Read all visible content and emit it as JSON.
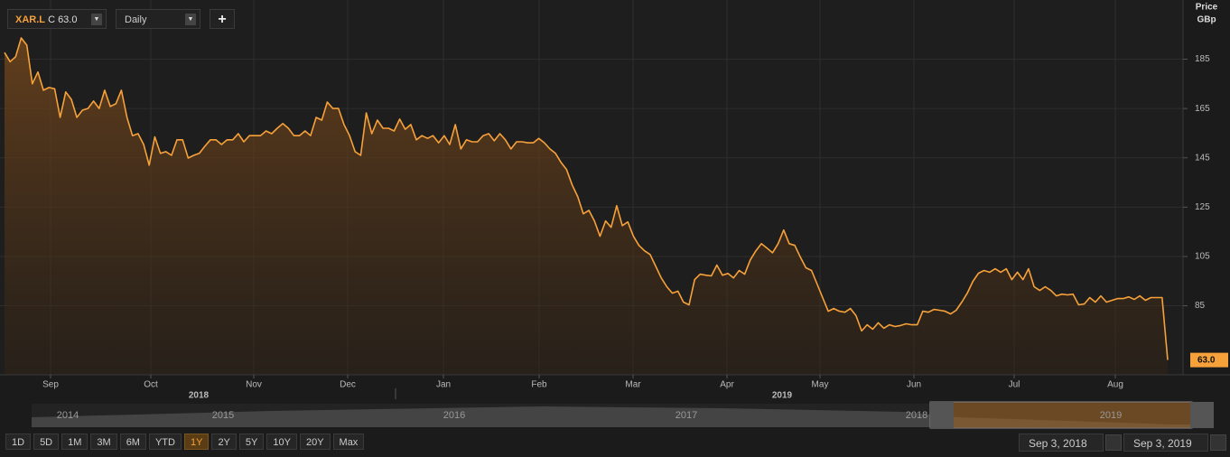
{
  "toolbar": {
    "symbol": "XAR.L",
    "quote": "C 63.0",
    "interval": "Daily",
    "add": "+"
  },
  "axis_header": {
    "title": "Price",
    "unit": "GBp"
  },
  "chart_data": {
    "type": "line",
    "color": "#f7a13a",
    "x_labels": [
      "Sep",
      "Oct",
      "Nov",
      "Dec",
      "Jan",
      "Feb",
      "Mar",
      "Apr",
      "May",
      "Jun",
      "Jul",
      "Aug"
    ],
    "year_labels": [
      "2018",
      "2019"
    ],
    "ylim": [
      57,
      209
    ],
    "yticks": [
      85,
      105,
      125,
      145,
      165,
      185
    ],
    "grid": true,
    "last_price_label": "63.0",
    "values": [
      187.7,
      184,
      186,
      193.6,
      190.7,
      175,
      179.8,
      172.4,
      173.5,
      173,
      161.4,
      171.7,
      168.7,
      161.4,
      164.3,
      165,
      168,
      165,
      172.4,
      165.8,
      166.9,
      172.4,
      161.4,
      154,
      154.8,
      150.4,
      142,
      153.5,
      146.8,
      147.5,
      146,
      152.3,
      152.3,
      144.9,
      146,
      146.8,
      149.7,
      152.3,
      152.3,
      150.4,
      152.3,
      152.3,
      154.8,
      151.5,
      154,
      154,
      154,
      155.9,
      154.8,
      157,
      158.9,
      157,
      154,
      154,
      155.9,
      154,
      161.4,
      160.3,
      167.6,
      165,
      165,
      158.5,
      154,
      147.5,
      146,
      163.2,
      154.8,
      160.3,
      157,
      157,
      155.9,
      160.7,
      156.6,
      158.5,
      152.3,
      154,
      152.9,
      154,
      151.1,
      154,
      150.4,
      158.5,
      148.6,
      152.3,
      151.5,
      151.5,
      154,
      154.8,
      151.9,
      154.8,
      152.3,
      148.6,
      151.5,
      151.5,
      151.1,
      151.1,
      152.9,
      151.1,
      148.6,
      146.8,
      143.1,
      140.2,
      134,
      129.2,
      122.3,
      123.7,
      119.4,
      113.2,
      119.4,
      116.8,
      125.6,
      117.5,
      119,
      113.2,
      109.5,
      107.3,
      105.8,
      101.1,
      96.3,
      92.7,
      90.1,
      90.9,
      86.5,
      85.4,
      95.6,
      97.8,
      97.4,
      97.1,
      101.5,
      97.4,
      98.1,
      96.3,
      99.3,
      97.8,
      103.6,
      107.3,
      110.2,
      108.4,
      106.5,
      110.2,
      115.7,
      110.2,
      109.5,
      104.7,
      100.4,
      99.3,
      93.8,
      88.3,
      82.8,
      83.9,
      82.8,
      82.4,
      83.9,
      81,
      74.8,
      77.3,
      75.5,
      78.1,
      75.9,
      77.3,
      76.6,
      77,
      77.7,
      77.3,
      77.3,
      82.8,
      82.4,
      83.5,
      83.2,
      82.8,
      81.7,
      83.2,
      86.5,
      90.1,
      94.9,
      98.2,
      99.3,
      98.6,
      100,
      98.6,
      100,
      95.6,
      98.6,
      95.6,
      100,
      92.7,
      91.2,
      92.7,
      91.2,
      89,
      89.7,
      89.4,
      89.7,
      85.4,
      85.7,
      88.3,
      86.5,
      89,
      86.5,
      87.2,
      87.9,
      87.9,
      88.6,
      87.6,
      89,
      87.2,
      88.3,
      88.3,
      88.3,
      63
    ]
  },
  "navigator": {
    "years": [
      "2014",
      "2015",
      "2016",
      "2017",
      "2018",
      "2019"
    ]
  },
  "ranges": [
    "1D",
    "5D",
    "1M",
    "3M",
    "6M",
    "YTD",
    "1Y",
    "2Y",
    "5Y",
    "10Y",
    "20Y",
    "Max"
  ],
  "dates": {
    "start": "Sep 3, 2018",
    "end": "Sep 3, 2019"
  }
}
